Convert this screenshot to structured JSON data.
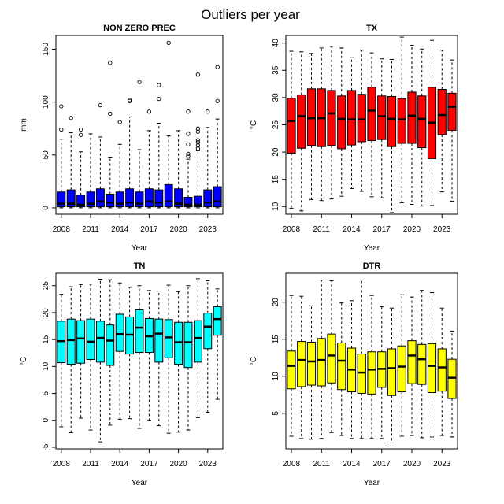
{
  "title": "Outliers per year",
  "chart_data": [
    {
      "type": "box",
      "title": "NON ZERO PREC",
      "xlabel": "Year",
      "ylabel": "mm",
      "fill_color": "#0000ff",
      "x": [
        2008,
        2009,
        2010,
        2011,
        2012,
        2013,
        2014,
        2015,
        2016,
        2017,
        2018,
        2019,
        2020,
        2021,
        2022,
        2023,
        2024
      ],
      "xticks": [
        2008,
        2011,
        2014,
        2017,
        2020,
        2023
      ],
      "yticks": [
        0,
        50,
        100,
        150
      ],
      "ylim": [
        -6,
        163
      ],
      "boxes": [
        {
          "min": 0,
          "q1": 1,
          "median": 4,
          "q3": 15,
          "max": 65
        },
        {
          "min": 0,
          "q1": 1,
          "median": 4,
          "q3": 17,
          "max": 71
        },
        {
          "min": 0,
          "q1": 1,
          "median": 3,
          "q3": 12,
          "max": 53
        },
        {
          "min": 0,
          "q1": 1,
          "median": 4,
          "q3": 15,
          "max": 70
        },
        {
          "min": 0,
          "q1": 1,
          "median": 6,
          "q3": 18,
          "max": 67
        },
        {
          "min": 0,
          "q1": 1,
          "median": 5,
          "q3": 13,
          "max": 48
        },
        {
          "min": 0,
          "q1": 1,
          "median": 4,
          "q3": 15,
          "max": 60
        },
        {
          "min": 0,
          "q1": 1,
          "median": 5,
          "q3": 18,
          "max": 86
        },
        {
          "min": 0,
          "q1": 1,
          "median": 4,
          "q3": 15,
          "max": 55
        },
        {
          "min": 0,
          "q1": 1,
          "median": 6,
          "q3": 18,
          "max": 73
        },
        {
          "min": 0,
          "q1": 1,
          "median": 5,
          "q3": 17,
          "max": 80
        },
        {
          "min": 0,
          "q1": 1,
          "median": 6,
          "q3": 22,
          "max": 68
        },
        {
          "min": 0,
          "q1": 1,
          "median": 4,
          "q3": 18,
          "max": 73
        },
        {
          "min": 0,
          "q1": 1,
          "median": 3,
          "q3": 10,
          "max": 46
        },
        {
          "min": 0,
          "q1": 1,
          "median": 3,
          "q3": 11,
          "max": 54
        },
        {
          "min": 0,
          "q1": 1,
          "median": 5,
          "q3": 17,
          "max": 76
        },
        {
          "min": 0,
          "q1": 1,
          "median": 6,
          "q3": 20,
          "max": 84
        }
      ],
      "outliers": [
        [
          74,
          96
        ],
        [
          85
        ],
        [
          69,
          74
        ],
        [],
        [
          97
        ],
        [
          89,
          137
        ],
        [
          81
        ],
        [
          101,
          102
        ],
        [
          119
        ],
        [
          91
        ],
        [
          103,
          116
        ],
        [
          156
        ],
        [],
        [
          49,
          51,
          60,
          70,
          91
        ],
        [
          56,
          59,
          62,
          64,
          72,
          75,
          126
        ],
        [
          91
        ],
        [
          101,
          133
        ]
      ]
    },
    {
      "type": "box",
      "title": "TX",
      "xlabel": "Year",
      "ylabel": "°C",
      "fill_color": "#ff0000",
      "x": [
        2008,
        2009,
        2010,
        2011,
        2012,
        2013,
        2014,
        2015,
        2016,
        2017,
        2018,
        2019,
        2020,
        2021,
        2022,
        2023,
        2024
      ],
      "xticks": [
        2008,
        2011,
        2014,
        2017,
        2020,
        2023
      ],
      "yticks": [
        10,
        15,
        20,
        25,
        30,
        35,
        40
      ],
      "ylim": [
        8.6,
        41.4
      ],
      "boxes": [
        {
          "min": 9.7,
          "q1": 19.8,
          "median": 25.7,
          "q3": 29.9,
          "max": 38.5
        },
        {
          "min": 9.2,
          "q1": 20.7,
          "median": 26.6,
          "q3": 30.5,
          "max": 38.4
        },
        {
          "min": 11.3,
          "q1": 21.2,
          "median": 26.2,
          "q3": 31.6,
          "max": 38.1
        },
        {
          "min": 11.1,
          "q1": 21.0,
          "median": 26.2,
          "q3": 31.6,
          "max": 39.1
        },
        {
          "min": 11.4,
          "q1": 21.2,
          "median": 27.1,
          "q3": 31.3,
          "max": 39.4
        },
        {
          "min": 11.9,
          "q1": 20.6,
          "median": 26.1,
          "q3": 30.3,
          "max": 39.1
        },
        {
          "min": 13.3,
          "q1": 21.3,
          "median": 26.0,
          "q3": 31.3,
          "max": 37.4
        },
        {
          "min": 12.8,
          "q1": 21.9,
          "median": 26.0,
          "q3": 30.6,
          "max": 38.7
        },
        {
          "min": 11.8,
          "q1": 22.1,
          "median": 27.6,
          "q3": 31.9,
          "max": 38.2
        },
        {
          "min": 11.6,
          "q1": 22.3,
          "median": 26.6,
          "q3": 30.3,
          "max": 37.1
        },
        {
          "min": 8.9,
          "q1": 21.0,
          "median": 26.1,
          "q3": 30.2,
          "max": 37.0
        },
        {
          "min": 10.7,
          "q1": 21.6,
          "median": 26.0,
          "q3": 29.8,
          "max": 41.1
        },
        {
          "min": 10.4,
          "q1": 21.6,
          "median": 26.7,
          "q3": 31.0,
          "max": 39.6
        },
        {
          "min": 10.1,
          "q1": 20.8,
          "median": 26.1,
          "q3": 30.3,
          "max": 38.9
        },
        {
          "min": 10.2,
          "q1": 18.8,
          "median": 25.4,
          "q3": 31.9,
          "max": 40.5
        },
        {
          "min": 12.7,
          "q1": 23.2,
          "median": 26.8,
          "q3": 31.5,
          "max": 38.7
        },
        {
          "min": 11.0,
          "q1": 24.0,
          "median": 28.3,
          "q3": 30.8,
          "max": 36.9
        }
      ],
      "outliers": [
        [],
        [],
        [],
        [],
        [],
        [],
        [],
        [],
        [],
        [],
        [],
        [],
        [],
        [],
        [],
        [],
        []
      ]
    },
    {
      "type": "box",
      "title": "TN",
      "xlabel": "Year",
      "ylabel": "°C",
      "fill_color": "#00ffff",
      "x": [
        2008,
        2009,
        2010,
        2011,
        2012,
        2013,
        2014,
        2015,
        2016,
        2017,
        2018,
        2019,
        2020,
        2021,
        2022,
        2023,
        2024
      ],
      "xticks": [
        2008,
        2011,
        2014,
        2017,
        2020,
        2023
      ],
      "yticks": [
        -5,
        0,
        5,
        10,
        15,
        20,
        25
      ],
      "ylim": [
        -5.3,
        27.3
      ],
      "boxes": [
        {
          "min": -1.2,
          "q1": 10.7,
          "median": 14.7,
          "q3": 18.4,
          "max": 23.4
        },
        {
          "min": -2.3,
          "q1": 10.4,
          "median": 14.9,
          "q3": 18.8,
          "max": 24.8
        },
        {
          "min": 0.4,
          "q1": 10.6,
          "median": 15.2,
          "q3": 18.5,
          "max": 25.2
        },
        {
          "min": -1.8,
          "q1": 11.3,
          "median": 14.6,
          "q3": 18.8,
          "max": 25.3
        },
        {
          "min": -4.0,
          "q1": 10.8,
          "median": 15.3,
          "q3": 18.4,
          "max": 26.2
        },
        {
          "min": -0.9,
          "q1": 10.2,
          "median": 14.8,
          "q3": 17.7,
          "max": 26.1
        },
        {
          "min": 0.2,
          "q1": 12.8,
          "median": 16.0,
          "q3": 19.7,
          "max": 25.5
        },
        {
          "min": 0.3,
          "q1": 12.3,
          "median": 15.9,
          "q3": 19.2,
          "max": 24.7
        },
        {
          "min": -1.5,
          "q1": 12.6,
          "median": 17.2,
          "q3": 20.5,
          "max": 25.0
        },
        {
          "min": 0.0,
          "q1": 12.6,
          "median": 15.6,
          "q3": 18.9,
          "max": 24.1
        },
        {
          "min": -1.0,
          "q1": 10.8,
          "median": 16.1,
          "q3": 18.8,
          "max": 24.0
        },
        {
          "min": -2.4,
          "q1": 11.6,
          "median": 15.4,
          "q3": 18.7,
          "max": 25.1
        },
        {
          "min": -2.2,
          "q1": 10.4,
          "median": 14.5,
          "q3": 18.2,
          "max": 23.9
        },
        {
          "min": -1.8,
          "q1": 9.8,
          "median": 14.5,
          "q3": 18.2,
          "max": 25.0
        },
        {
          "min": 0.5,
          "q1": 10.8,
          "median": 15.3,
          "q3": 18.5,
          "max": 26.3
        },
        {
          "min": 1.5,
          "q1": 13.3,
          "median": 17.4,
          "q3": 19.9,
          "max": 25.9
        },
        {
          "min": 3.9,
          "q1": 15.8,
          "median": 18.8,
          "q3": 21.1,
          "max": 24.4
        }
      ],
      "outliers": [
        [],
        [],
        [],
        [],
        [],
        [],
        [],
        [],
        [],
        [],
        [],
        [],
        [],
        [],
        [],
        [],
        []
      ]
    },
    {
      "type": "box",
      "title": "DTR",
      "xlabel": "Year",
      "ylabel": "°C",
      "fill_color": "#ffff00",
      "x": [
        2008,
        2009,
        2010,
        2011,
        2012,
        2013,
        2014,
        2015,
        2016,
        2017,
        2018,
        2019,
        2020,
        2021,
        2022,
        2023,
        2024
      ],
      "xticks": [
        2008,
        2011,
        2014,
        2017,
        2020,
        2023
      ],
      "yticks": [
        5,
        10,
        15,
        20
      ],
      "ylim": [
        0.2,
        23.9
      ],
      "boxes": [
        {
          "min": 1.9,
          "q1": 8.3,
          "median": 11.4,
          "q3": 13.4,
          "max": 20.9
        },
        {
          "min": 1.6,
          "q1": 8.6,
          "median": 12.2,
          "q3": 14.7,
          "max": 20.8
        },
        {
          "min": 1.5,
          "q1": 8.8,
          "median": 12.0,
          "q3": 14.6,
          "max": 19.5
        },
        {
          "min": 1.6,
          "q1": 8.7,
          "median": 12.2,
          "q3": 15.1,
          "max": 23.0
        },
        {
          "min": 2.4,
          "q1": 9.1,
          "median": 12.8,
          "q3": 15.7,
          "max": 22.9
        },
        {
          "min": 2.0,
          "q1": 8.2,
          "median": 12.1,
          "q3": 14.5,
          "max": 19.9
        },
        {
          "min": 1.6,
          "q1": 7.9,
          "median": 10.9,
          "q3": 13.8,
          "max": 20.2
        },
        {
          "min": 1.6,
          "q1": 7.7,
          "median": 10.5,
          "q3": 13.0,
          "max": 23.0
        },
        {
          "min": 1.6,
          "q1": 7.6,
          "median": 10.9,
          "q3": 13.3,
          "max": 20.9
        },
        {
          "min": 1.6,
          "q1": 8.5,
          "median": 11.0,
          "q3": 13.3,
          "max": 19.4
        },
        {
          "min": 1.0,
          "q1": 7.4,
          "median": 11.1,
          "q3": 13.7,
          "max": 19.2
        },
        {
          "min": 1.9,
          "q1": 7.9,
          "median": 11.3,
          "q3": 14.1,
          "max": 21.0
        },
        {
          "min": 2.0,
          "q1": 9.0,
          "median": 12.8,
          "q3": 14.8,
          "max": 20.7
        },
        {
          "min": 1.7,
          "q1": 8.9,
          "median": 12.3,
          "q3": 14.3,
          "max": 21.6
        },
        {
          "min": 1.8,
          "q1": 7.8,
          "median": 11.4,
          "q3": 14.4,
          "max": 21.3
        },
        {
          "min": 2.0,
          "q1": 8.0,
          "median": 11.2,
          "q3": 13.7,
          "max": 19.2
        },
        {
          "min": 1.8,
          "q1": 7.0,
          "median": 9.8,
          "q3": 12.3,
          "max": 16.1
        }
      ],
      "outliers": [
        [],
        [],
        [],
        [],
        [],
        [],
        [],
        [],
        [],
        [],
        [],
        [],
        [],
        [],
        [],
        [],
        []
      ]
    }
  ]
}
